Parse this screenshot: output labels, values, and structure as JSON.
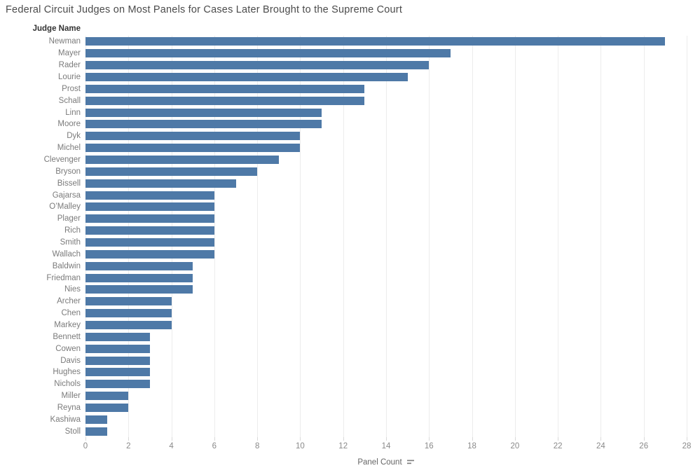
{
  "chart_data": {
    "type": "bar",
    "orientation": "horizontal",
    "title": "Federal Circuit Judges on Most Panels for Cases Later Brought to the Supreme Court",
    "y_axis_title": "Judge Name",
    "x_axis_title": "Panel Count",
    "categories": [
      "Newman",
      "Mayer",
      "Rader",
      "Lourie",
      "Prost",
      "Schall",
      "Linn",
      "Moore",
      "Dyk",
      "Michel",
      "Clevenger",
      "Bryson",
      "Bissell",
      "Gajarsa",
      "O’Malley",
      "Plager",
      "Rich",
      "Smith",
      "Wallach",
      "Baldwin",
      "Friedman",
      "Nies",
      "Archer",
      "Chen",
      "Markey",
      "Bennett",
      "Cowen",
      "Davis",
      "Hughes",
      "Nichols",
      "Miller",
      "Reyna",
      "Kashiwa",
      "Stoll"
    ],
    "values": [
      27,
      17,
      16,
      15,
      13,
      13,
      11,
      11,
      10,
      10,
      9,
      8,
      7,
      6,
      6,
      6,
      6,
      6,
      6,
      5,
      5,
      5,
      4,
      4,
      4,
      3,
      3,
      3,
      3,
      3,
      2,
      2,
      1,
      1
    ],
    "xlim": [
      0,
      28
    ],
    "x_ticks": [
      0,
      2,
      4,
      6,
      8,
      10,
      12,
      14,
      16,
      18,
      20,
      22,
      24,
      26,
      28
    ],
    "grid": true,
    "legend": "none",
    "colors": {
      "bar": "#4e79a7",
      "gridline": "#ececec",
      "title_text": "#4b4b4b",
      "label_text": "#7b7b7b",
      "tick_text": "#8a8a8a",
      "sort_icon": "#808080"
    },
    "icons": {
      "sort": "sort-descending-icon"
    }
  }
}
